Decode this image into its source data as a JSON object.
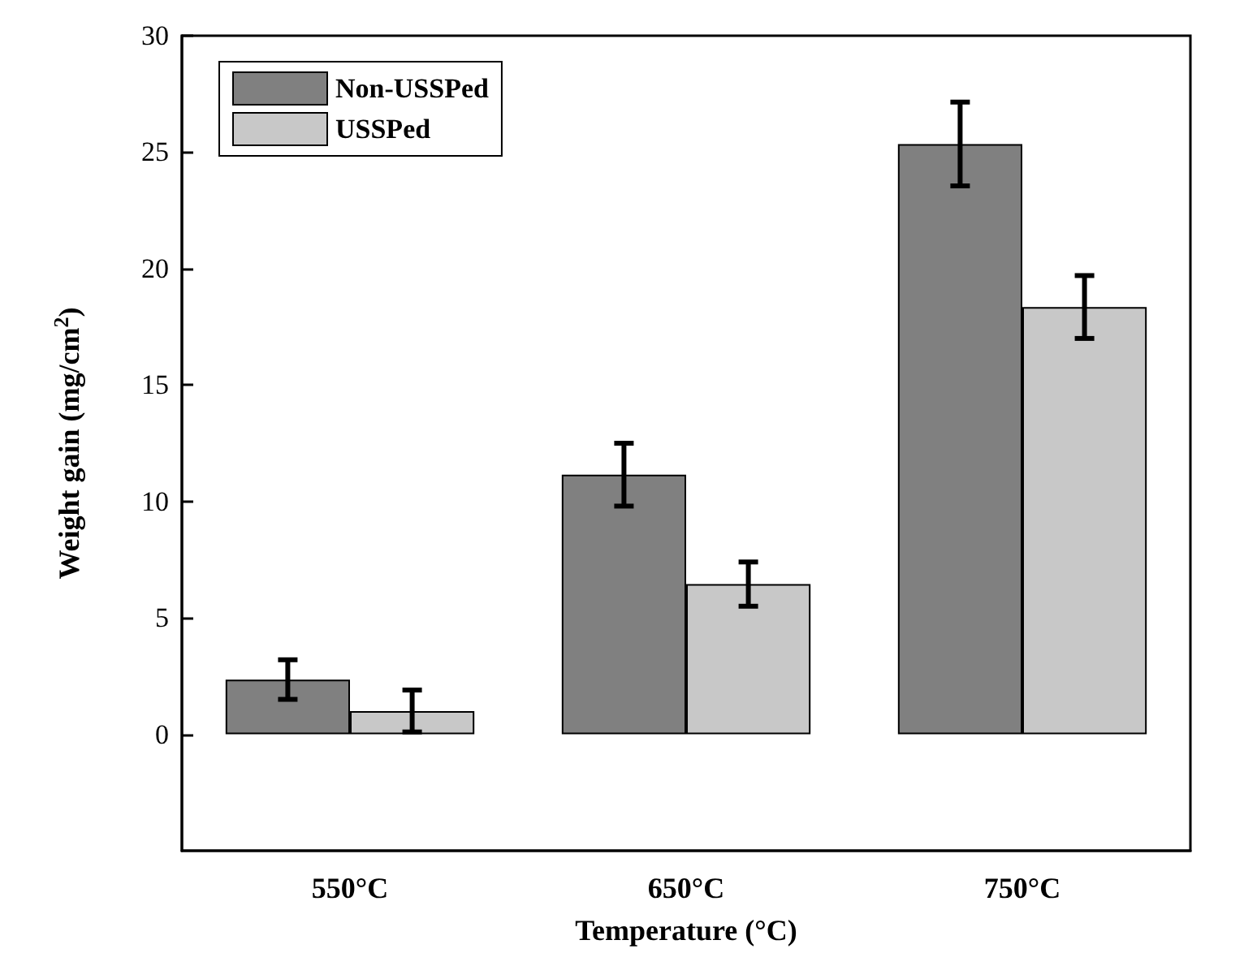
{
  "chart_data": {
    "type": "bar",
    "xlabel": "Temperature (°C)",
    "ylabel": "Weight gain (mg/cm$^{2}$)",
    "categories": [
      "550°C",
      "650°C",
      "750°C"
    ],
    "series": [
      {
        "name": "Non-USSPed",
        "color": "#808080",
        "values": [
          2.35,
          11.15,
          25.35
        ],
        "errors": [
          0.85,
          1.35,
          1.8
        ]
      },
      {
        "name": "USSPed",
        "color": "#c8c8c8",
        "values": [
          1.0,
          6.45,
          18.35
        ],
        "errors": [
          0.9,
          0.95,
          1.35
        ]
      }
    ],
    "ylim": [
      -5,
      30
    ],
    "yticks": [
      0,
      5,
      10,
      15,
      20,
      25,
      30
    ],
    "grid": false,
    "legend": "top left"
  }
}
